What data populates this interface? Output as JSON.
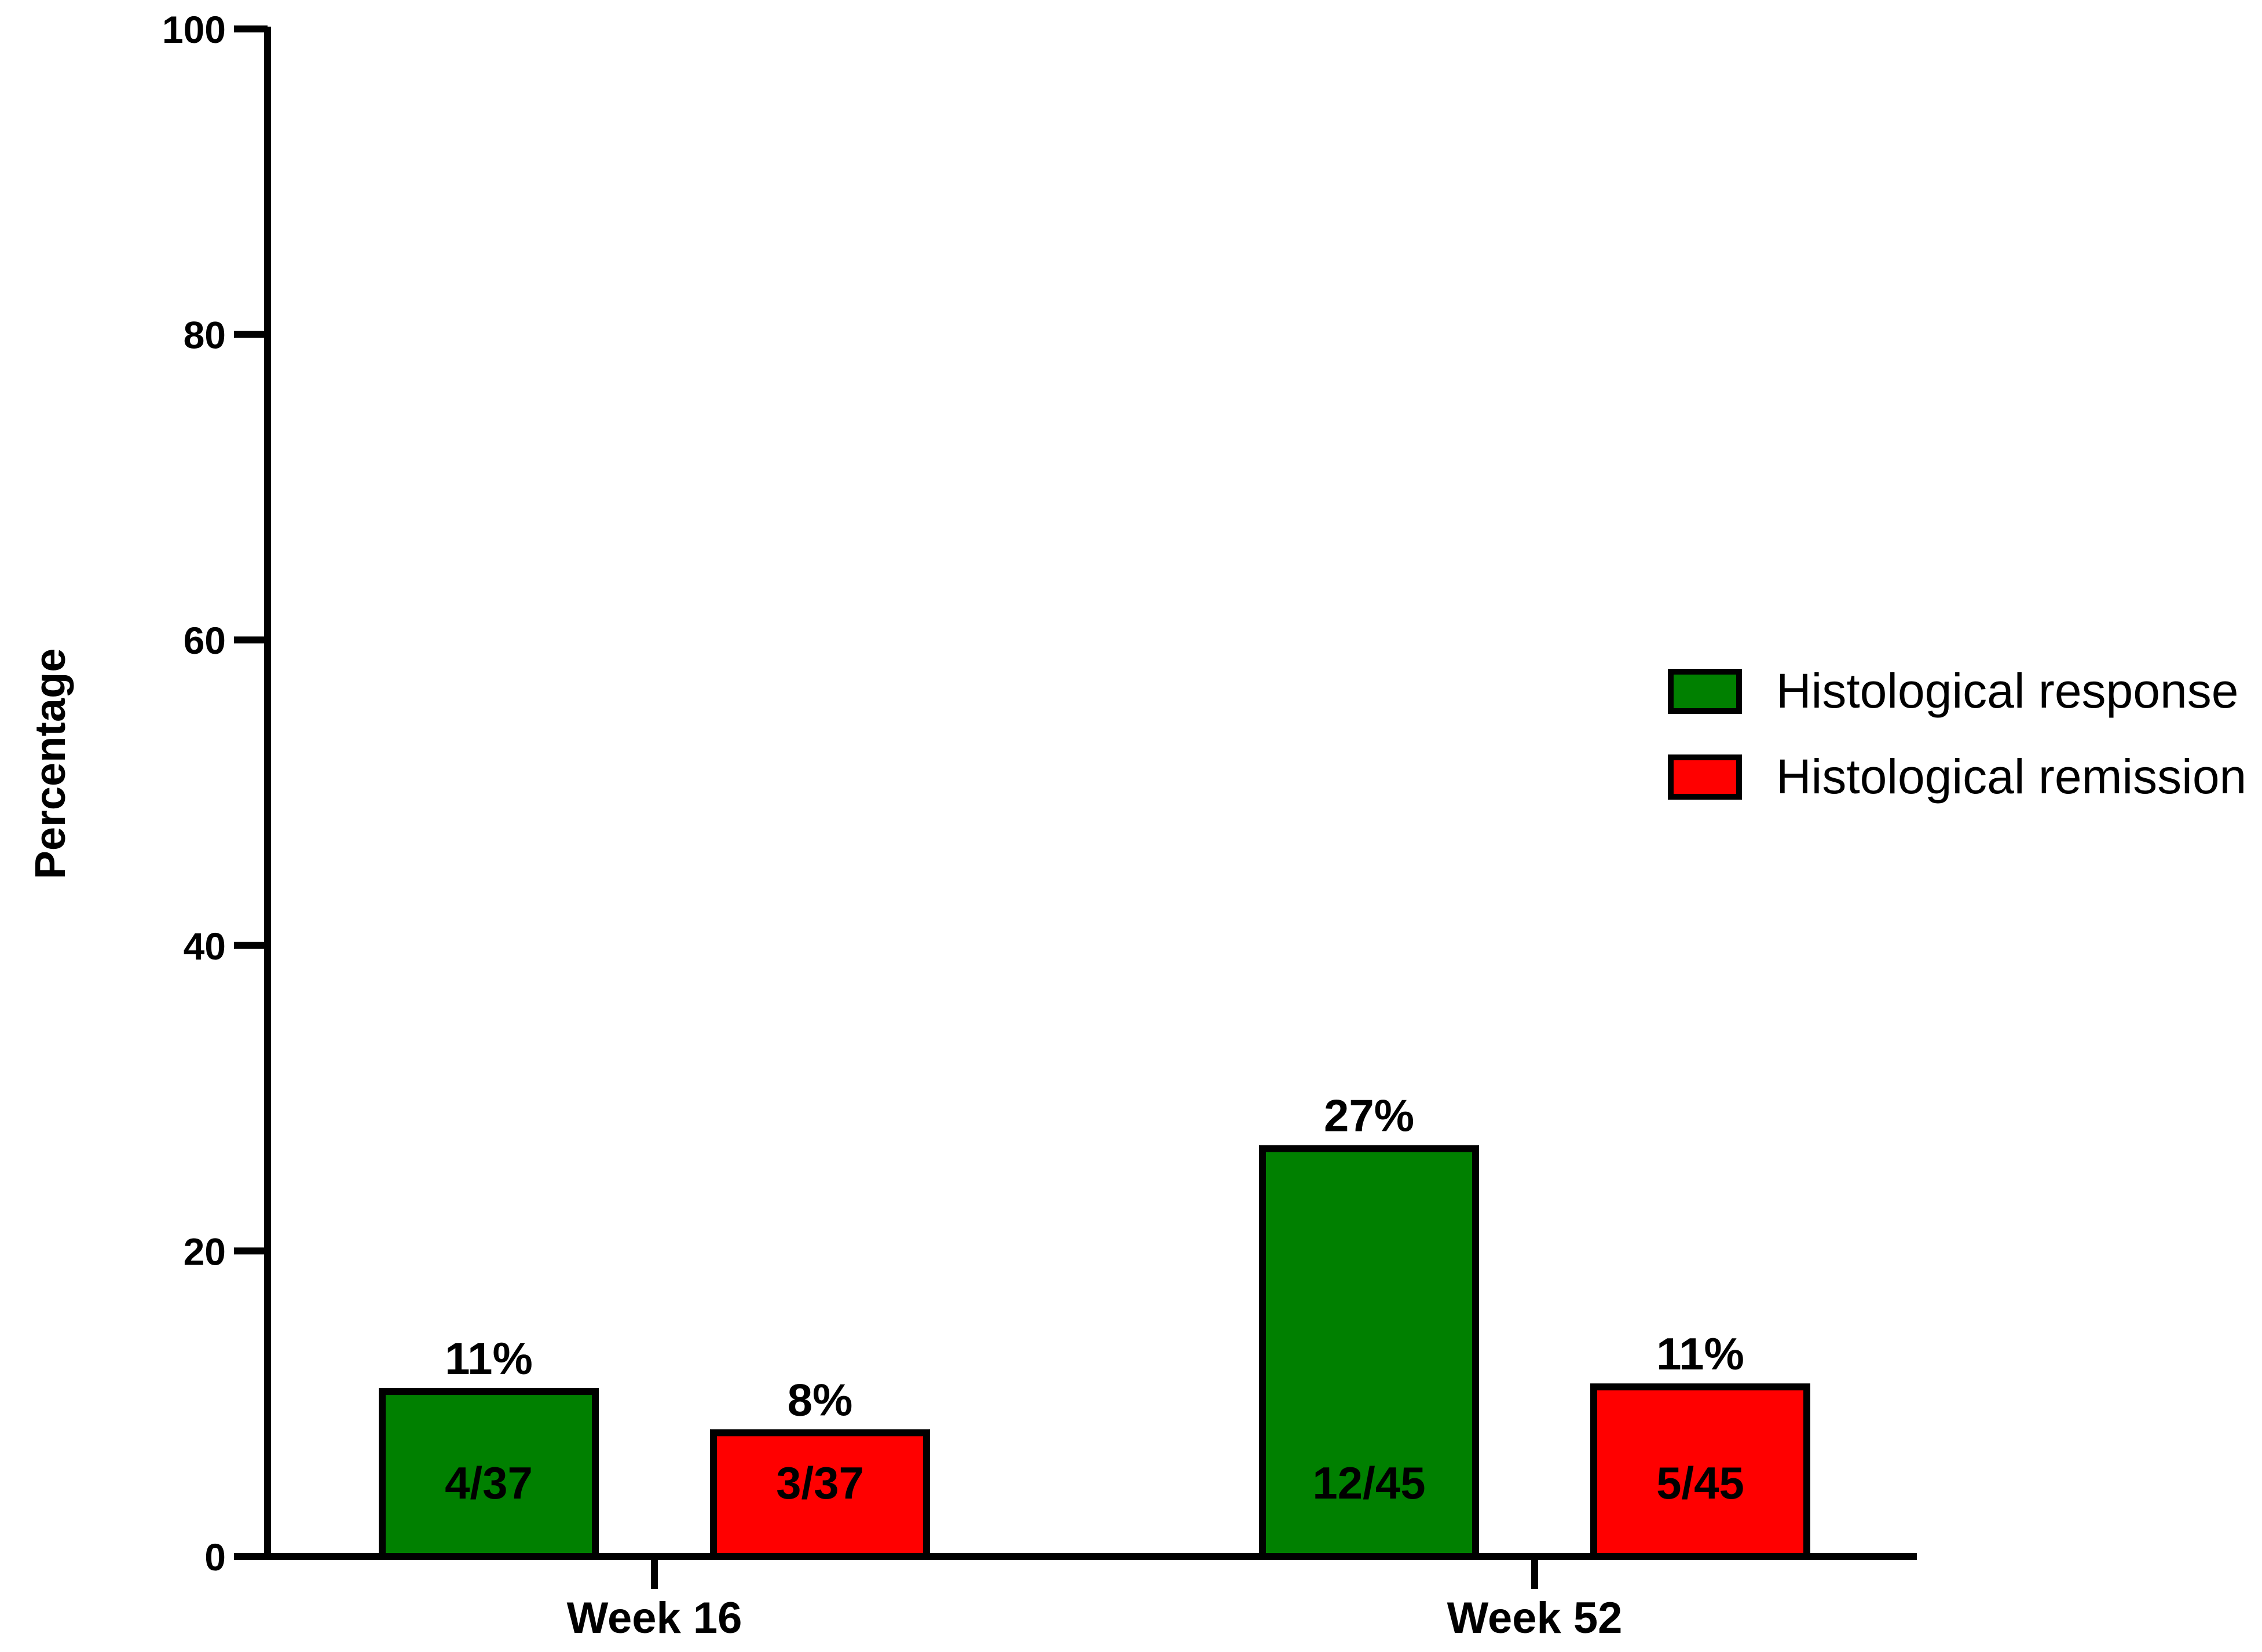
{
  "chart_data": {
    "type": "bar",
    "categories": [
      "Week 16",
      "Week 52"
    ],
    "ylabel": "Percentage",
    "xlabel": "",
    "ylim": [
      0,
      100
    ],
    "yticks": [
      0,
      20,
      40,
      60,
      80,
      100
    ],
    "legend_position": "right",
    "series": [
      {
        "name": "Histological response",
        "color": "#008000",
        "values": [
          10.8,
          26.7
        ],
        "value_labels": [
          "11%",
          "27%"
        ],
        "fraction_labels": [
          "4/37",
          "12/45"
        ]
      },
      {
        "name": "Histological remission",
        "color": "#ff0000",
        "values": [
          8.1,
          11.1
        ],
        "value_labels": [
          "8%",
          "11%"
        ],
        "fraction_labels": [
          "3/37",
          "5/45"
        ]
      }
    ]
  }
}
